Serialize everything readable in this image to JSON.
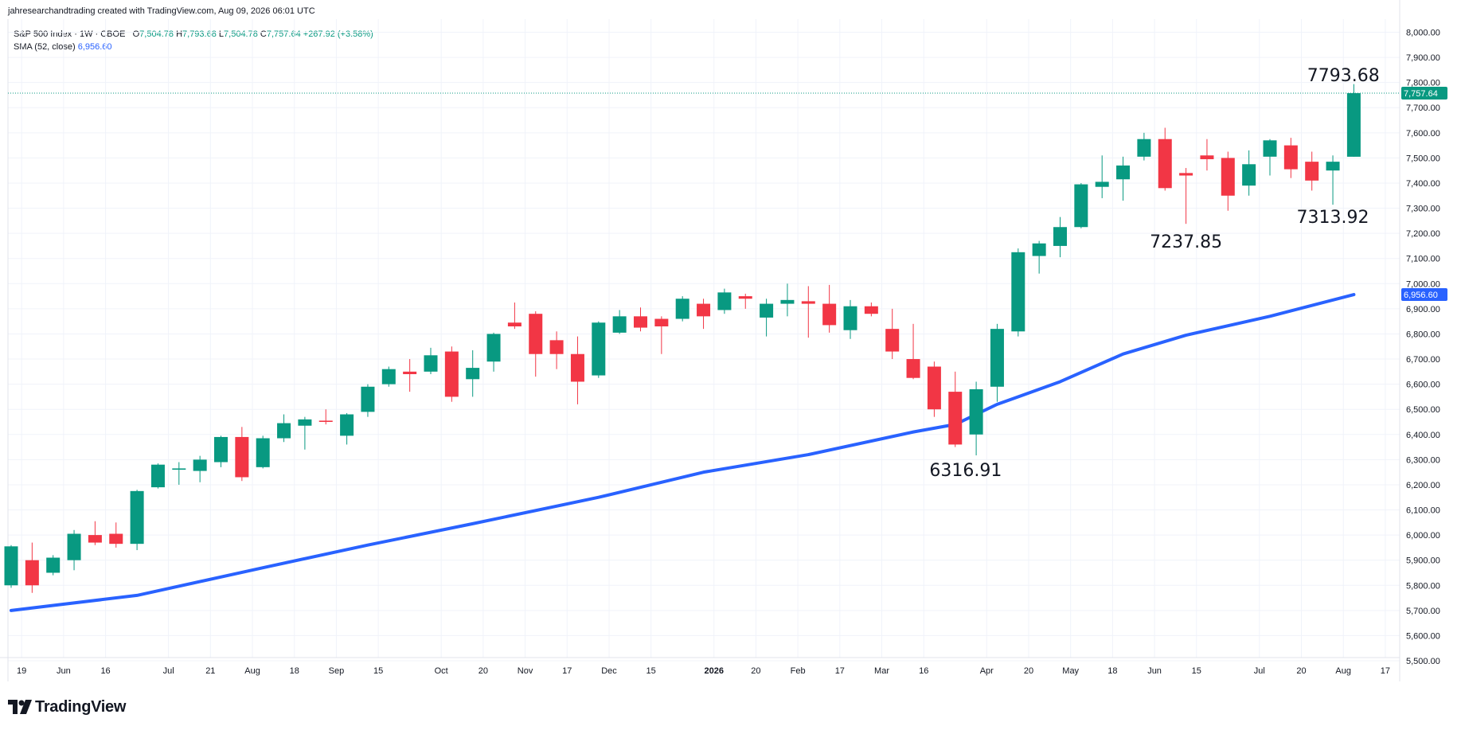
{
  "header": {
    "credit": "jahresearchandtrading created with TradingView.com, Aug 09, 2026 06:01 UTC"
  },
  "legend": {
    "symbol": "S&P 500 Index · 1W · CBOE",
    "open_label": "O",
    "open": "7,504.78",
    "high_label": "H",
    "high": "7,793.68",
    "low_label": "L",
    "low": "7,504.78",
    "close_label": "C",
    "close": "7,757.64",
    "change": "+267.92 (+3.58%)",
    "sma_label": "SMA (52, close)",
    "sma_value": "6,956.60"
  },
  "footer": {
    "brand": "TradingView"
  },
  "colors": {
    "up": "#089981",
    "down": "#f23645",
    "sma": "#2962ff",
    "grid": "#f0f3fa",
    "axis_text": "#131722"
  },
  "chart_data": {
    "type": "candlestick",
    "interval": "1W",
    "y_axis": {
      "min": 5500,
      "max": 8000,
      "step": 100,
      "tick_labels": [
        "5,500.00",
        "5,600.00",
        "5,700.00",
        "5,800.00",
        "5,900.00",
        "6,000.00",
        "6,100.00",
        "6,200.00",
        "6,300.00",
        "6,400.00",
        "6,500.00",
        "6,600.00",
        "6,700.00",
        "6,800.00",
        "6,900.00",
        "7,000.00",
        "7,100.00",
        "7,200.00",
        "7,300.00",
        "7,400.00",
        "7,500.00",
        "7,600.00",
        "7,700.00",
        "7,800.00",
        "7,900.00",
        "8,000.00"
      ],
      "side": "right"
    },
    "x_axis": {
      "ticks": [
        {
          "i": 0.5,
          "label": "19"
        },
        {
          "i": 2.5,
          "label": "Jun"
        },
        {
          "i": 4.5,
          "label": "16"
        },
        {
          "i": 7.5,
          "label": "Jul"
        },
        {
          "i": 9.5,
          "label": "21"
        },
        {
          "i": 11.5,
          "label": "Aug"
        },
        {
          "i": 13.5,
          "label": "18"
        },
        {
          "i": 15.5,
          "label": "Sep"
        },
        {
          "i": 17.5,
          "label": "15"
        },
        {
          "i": 20.5,
          "label": "Oct"
        },
        {
          "i": 22.5,
          "label": "20"
        },
        {
          "i": 24.5,
          "label": "Nov"
        },
        {
          "i": 26.5,
          "label": "17"
        },
        {
          "i": 28.5,
          "label": "Dec"
        },
        {
          "i": 30.5,
          "label": "15"
        },
        {
          "i": 33.5,
          "label": "2026",
          "bold": true
        },
        {
          "i": 35.5,
          "label": "20"
        },
        {
          "i": 37.5,
          "label": "Feb"
        },
        {
          "i": 39.5,
          "label": "17"
        },
        {
          "i": 41.5,
          "label": "Mar"
        },
        {
          "i": 43.5,
          "label": "16"
        },
        {
          "i": 46.5,
          "label": "Apr"
        },
        {
          "i": 48.5,
          "label": "20"
        },
        {
          "i": 50.5,
          "label": "May"
        },
        {
          "i": 52.5,
          "label": "18"
        },
        {
          "i": 54.5,
          "label": "Jun"
        },
        {
          "i": 56.5,
          "label": "15"
        },
        {
          "i": 59.5,
          "label": "Jul"
        },
        {
          "i": 61.5,
          "label": "20"
        },
        {
          "i": 63.5,
          "label": "Aug"
        },
        {
          "i": 65.5,
          "label": "17"
        }
      ]
    },
    "candles": [
      {
        "o": 5800,
        "h": 5960,
        "l": 5790,
        "c": 5955
      },
      {
        "o": 5900,
        "h": 5970,
        "l": 5770,
        "c": 5800
      },
      {
        "o": 5850,
        "h": 5920,
        "l": 5840,
        "c": 5910
      },
      {
        "o": 5900,
        "h": 6020,
        "l": 5860,
        "c": 6005
      },
      {
        "o": 6000,
        "h": 6055,
        "l": 5960,
        "c": 5970
      },
      {
        "o": 6005,
        "h": 6050,
        "l": 5950,
        "c": 5965
      },
      {
        "o": 5965,
        "h": 6180,
        "l": 5940,
        "c": 6175
      },
      {
        "o": 6190,
        "h": 6285,
        "l": 6185,
        "c": 6280
      },
      {
        "o": 6260,
        "h": 6290,
        "l": 6200,
        "c": 6265
      },
      {
        "o": 6255,
        "h": 6315,
        "l": 6210,
        "c": 6300
      },
      {
        "o": 6290,
        "h": 6395,
        "l": 6270,
        "c": 6390
      },
      {
        "o": 6390,
        "h": 6430,
        "l": 6215,
        "c": 6230
      },
      {
        "o": 6270,
        "h": 6395,
        "l": 6265,
        "c": 6385
      },
      {
        "o": 6385,
        "h": 6480,
        "l": 6370,
        "c": 6445
      },
      {
        "o": 6435,
        "h": 6470,
        "l": 6340,
        "c": 6460
      },
      {
        "o": 6455,
        "h": 6500,
        "l": 6440,
        "c": 6450
      },
      {
        "o": 6395,
        "h": 6485,
        "l": 6360,
        "c": 6480
      },
      {
        "o": 6490,
        "h": 6600,
        "l": 6470,
        "c": 6590
      },
      {
        "o": 6600,
        "h": 6670,
        "l": 6590,
        "c": 6660
      },
      {
        "o": 6650,
        "h": 6700,
        "l": 6570,
        "c": 6640
      },
      {
        "o": 6650,
        "h": 6745,
        "l": 6640,
        "c": 6715
      },
      {
        "o": 6730,
        "h": 6750,
        "l": 6530,
        "c": 6550
      },
      {
        "o": 6620,
        "h": 6735,
        "l": 6550,
        "c": 6665
      },
      {
        "o": 6690,
        "h": 6805,
        "l": 6650,
        "c": 6800
      },
      {
        "o": 6845,
        "h": 6925,
        "l": 6820,
        "c": 6830
      },
      {
        "o": 6880,
        "h": 6890,
        "l": 6630,
        "c": 6720
      },
      {
        "o": 6775,
        "h": 6810,
        "l": 6660,
        "c": 6720
      },
      {
        "o": 6720,
        "h": 6790,
        "l": 6520,
        "c": 6610
      },
      {
        "o": 6635,
        "h": 6850,
        "l": 6625,
        "c": 6845
      },
      {
        "o": 6805,
        "h": 6895,
        "l": 6800,
        "c": 6870
      },
      {
        "o": 6870,
        "h": 6905,
        "l": 6810,
        "c": 6825
      },
      {
        "o": 6860,
        "h": 6870,
        "l": 6720,
        "c": 6830
      },
      {
        "o": 6860,
        "h": 6950,
        "l": 6850,
        "c": 6940
      },
      {
        "o": 6920,
        "h": 6940,
        "l": 6820,
        "c": 6870
      },
      {
        "o": 6895,
        "h": 6980,
        "l": 6880,
        "c": 6965
      },
      {
        "o": 6950,
        "h": 6960,
        "l": 6900,
        "c": 6940
      },
      {
        "o": 6865,
        "h": 6940,
        "l": 6790,
        "c": 6920
      },
      {
        "o": 6920,
        "h": 7000,
        "l": 6870,
        "c": 6935
      },
      {
        "o": 6930,
        "h": 6990,
        "l": 6785,
        "c": 6920
      },
      {
        "o": 6920,
        "h": 6995,
        "l": 6805,
        "c": 6835
      },
      {
        "o": 6815,
        "h": 6935,
        "l": 6780,
        "c": 6910
      },
      {
        "o": 6910,
        "h": 6925,
        "l": 6870,
        "c": 6880
      },
      {
        "o": 6820,
        "h": 6900,
        "l": 6700,
        "c": 6730
      },
      {
        "o": 6700,
        "h": 6840,
        "l": 6620,
        "c": 6625
      },
      {
        "o": 6670,
        "h": 6690,
        "l": 6470,
        "c": 6500
      },
      {
        "o": 6570,
        "h": 6650,
        "l": 6350,
        "c": 6360
      },
      {
        "o": 6400,
        "h": 6610,
        "l": 6316.91,
        "c": 6580
      },
      {
        "o": 6590,
        "h": 6840,
        "l": 6530,
        "c": 6820
      },
      {
        "o": 6810,
        "h": 7140,
        "l": 6790,
        "c": 7125
      },
      {
        "o": 7110,
        "h": 7170,
        "l": 7040,
        "c": 7160
      },
      {
        "o": 7150,
        "h": 7265,
        "l": 7105,
        "c": 7225
      },
      {
        "o": 7225,
        "h": 7400,
        "l": 7220,
        "c": 7395
      },
      {
        "o": 7385,
        "h": 7510,
        "l": 7340,
        "c": 7405
      },
      {
        "o": 7415,
        "h": 7505,
        "l": 7330,
        "c": 7470
      },
      {
        "o": 7505,
        "h": 7600,
        "l": 7490,
        "c": 7575
      },
      {
        "o": 7575,
        "h": 7620,
        "l": 7370,
        "c": 7380
      },
      {
        "o": 7440,
        "h": 7460,
        "l": 7237.85,
        "c": 7430
      },
      {
        "o": 7510,
        "h": 7575,
        "l": 7450,
        "c": 7495
      },
      {
        "o": 7500,
        "h": 7525,
        "l": 7290,
        "c": 7350
      },
      {
        "o": 7390,
        "h": 7530,
        "l": 7350,
        "c": 7475
      },
      {
        "o": 7505,
        "h": 7575,
        "l": 7430,
        "c": 7570
      },
      {
        "o": 7550,
        "h": 7580,
        "l": 7420,
        "c": 7455
      },
      {
        "o": 7485,
        "h": 7525,
        "l": 7370,
        "c": 7410
      },
      {
        "o": 7450,
        "h": 7510,
        "l": 7313.92,
        "c": 7485
      },
      {
        "o": 7504.78,
        "h": 7793.68,
        "l": 7504.78,
        "c": 7757.64
      }
    ],
    "sma": {
      "name": "SMA (52, close)",
      "points": [
        {
          "i": 0,
          "v": 5700
        },
        {
          "i": 6,
          "v": 5760
        },
        {
          "i": 12,
          "v": 5870
        },
        {
          "i": 17,
          "v": 5960
        },
        {
          "i": 22,
          "v": 6045
        },
        {
          "i": 28,
          "v": 6150
        },
        {
          "i": 33,
          "v": 6250
        },
        {
          "i": 38,
          "v": 6320
        },
        {
          "i": 43,
          "v": 6410
        },
        {
          "i": 45,
          "v": 6440
        },
        {
          "i": 47,
          "v": 6520
        },
        {
          "i": 50,
          "v": 6610
        },
        {
          "i": 53,
          "v": 6720
        },
        {
          "i": 56,
          "v": 6795
        },
        {
          "i": 60,
          "v": 6870
        },
        {
          "i": 64,
          "v": 6956.6
        }
      ]
    },
    "annotations": [
      {
        "i": 63.5,
        "label": "7793.68",
        "position": "above"
      },
      {
        "i": 56,
        "label": "7237.85",
        "position": "below"
      },
      {
        "i": 63,
        "label": "7313.92",
        "position": "below"
      },
      {
        "i": 45.5,
        "label": "6316.91",
        "position": "below"
      }
    ],
    "price_tags": [
      {
        "value": 7757.64,
        "label": "7,757.64",
        "color": "#089981"
      },
      {
        "value": 6956.6,
        "label": "6,956.60",
        "color": "#2962ff"
      }
    ],
    "last_price_line": 7757.64
  }
}
